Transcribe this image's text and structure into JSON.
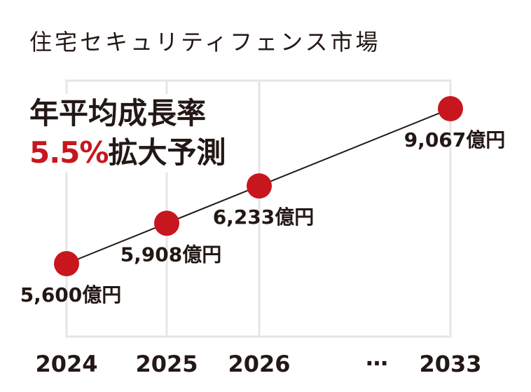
{
  "chart_data": {
    "type": "line",
    "title": "住宅セキュリティフェンス市場",
    "x_ticks": [
      "2024",
      "2025",
      "2026",
      "…",
      "2033"
    ],
    "x": [
      2024,
      2025,
      2026,
      2033
    ],
    "series": [
      {
        "values": [
          5600,
          5908,
          6233,
          9067
        ],
        "data_labels": [
          "5,600億円",
          "5,908億円",
          "6,233億円",
          "9,067億円"
        ]
      }
    ],
    "annotation": {
      "line1": "年平均成長率",
      "rate": "5.5%",
      "line2": "拡大予測"
    },
    "grid": true,
    "colors": {
      "marker": "#c8161e",
      "line": "#231815",
      "grid": "#e6e6e6",
      "text": "#231815",
      "rate": "#c8161e"
    }
  }
}
